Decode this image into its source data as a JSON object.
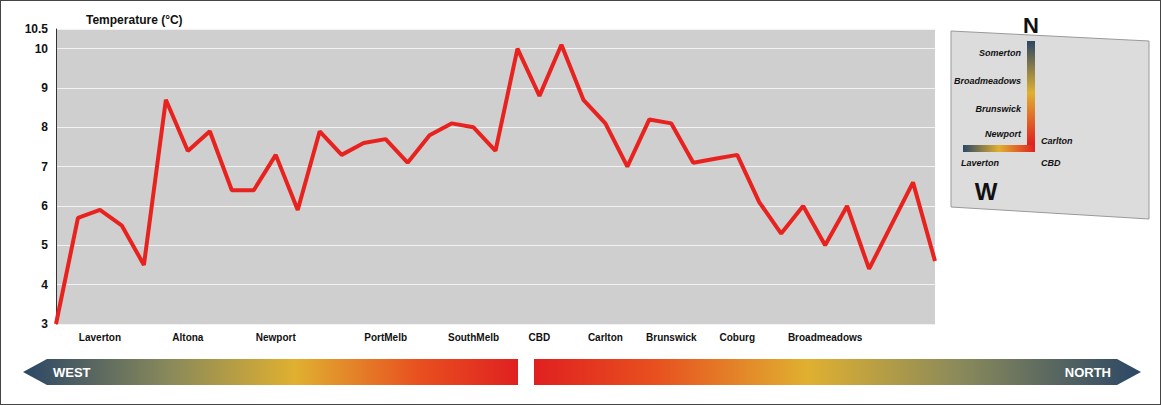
{
  "chart_data": {
    "type": "line",
    "title": "Temperature (°C)",
    "categories": [
      null,
      null,
      "Laverton",
      null,
      null,
      null,
      "Altona",
      null,
      null,
      null,
      "Newport",
      null,
      null,
      null,
      null,
      "PortMelb",
      null,
      null,
      null,
      "SouthMelb",
      null,
      null,
      "CBD",
      null,
      null,
      "Carlton",
      null,
      null,
      "Brunswick",
      null,
      null,
      "Coburg",
      null,
      null,
      null,
      "Broadmeadows",
      null,
      null,
      null,
      null,
      null
    ],
    "values": [
      3,
      5.7,
      5.9,
      5.5,
      4.5,
      8.7,
      7.4,
      7.9,
      6.4,
      6.4,
      7.3,
      5.9,
      7.9,
      7.3,
      7.6,
      7.7,
      7.1,
      7.8,
      8.1,
      8.0,
      7.4,
      10.0,
      8.8,
      10.1,
      8.7,
      8.1,
      7.0,
      8.2,
      8.1,
      7.1,
      7.2,
      7.3,
      6.1,
      5.3,
      6.0,
      5.0,
      6.0,
      4.4,
      5.5,
      6.6,
      4.6
    ],
    "color": "#e8231f",
    "ylim": [
      3,
      10.5
    ],
    "yticks": [
      3,
      4,
      5,
      6,
      7,
      8,
      9,
      10
    ],
    "grid": true,
    "annotations": [
      "WEST",
      "NORTH"
    ],
    "inset_labels": [
      "Somerton",
      "Broadmeadows",
      "Brunswick",
      "Newport",
      "Carlton",
      "Laverton",
      "CBD"
    ],
    "compass": [
      "N",
      "W"
    ]
  }
}
